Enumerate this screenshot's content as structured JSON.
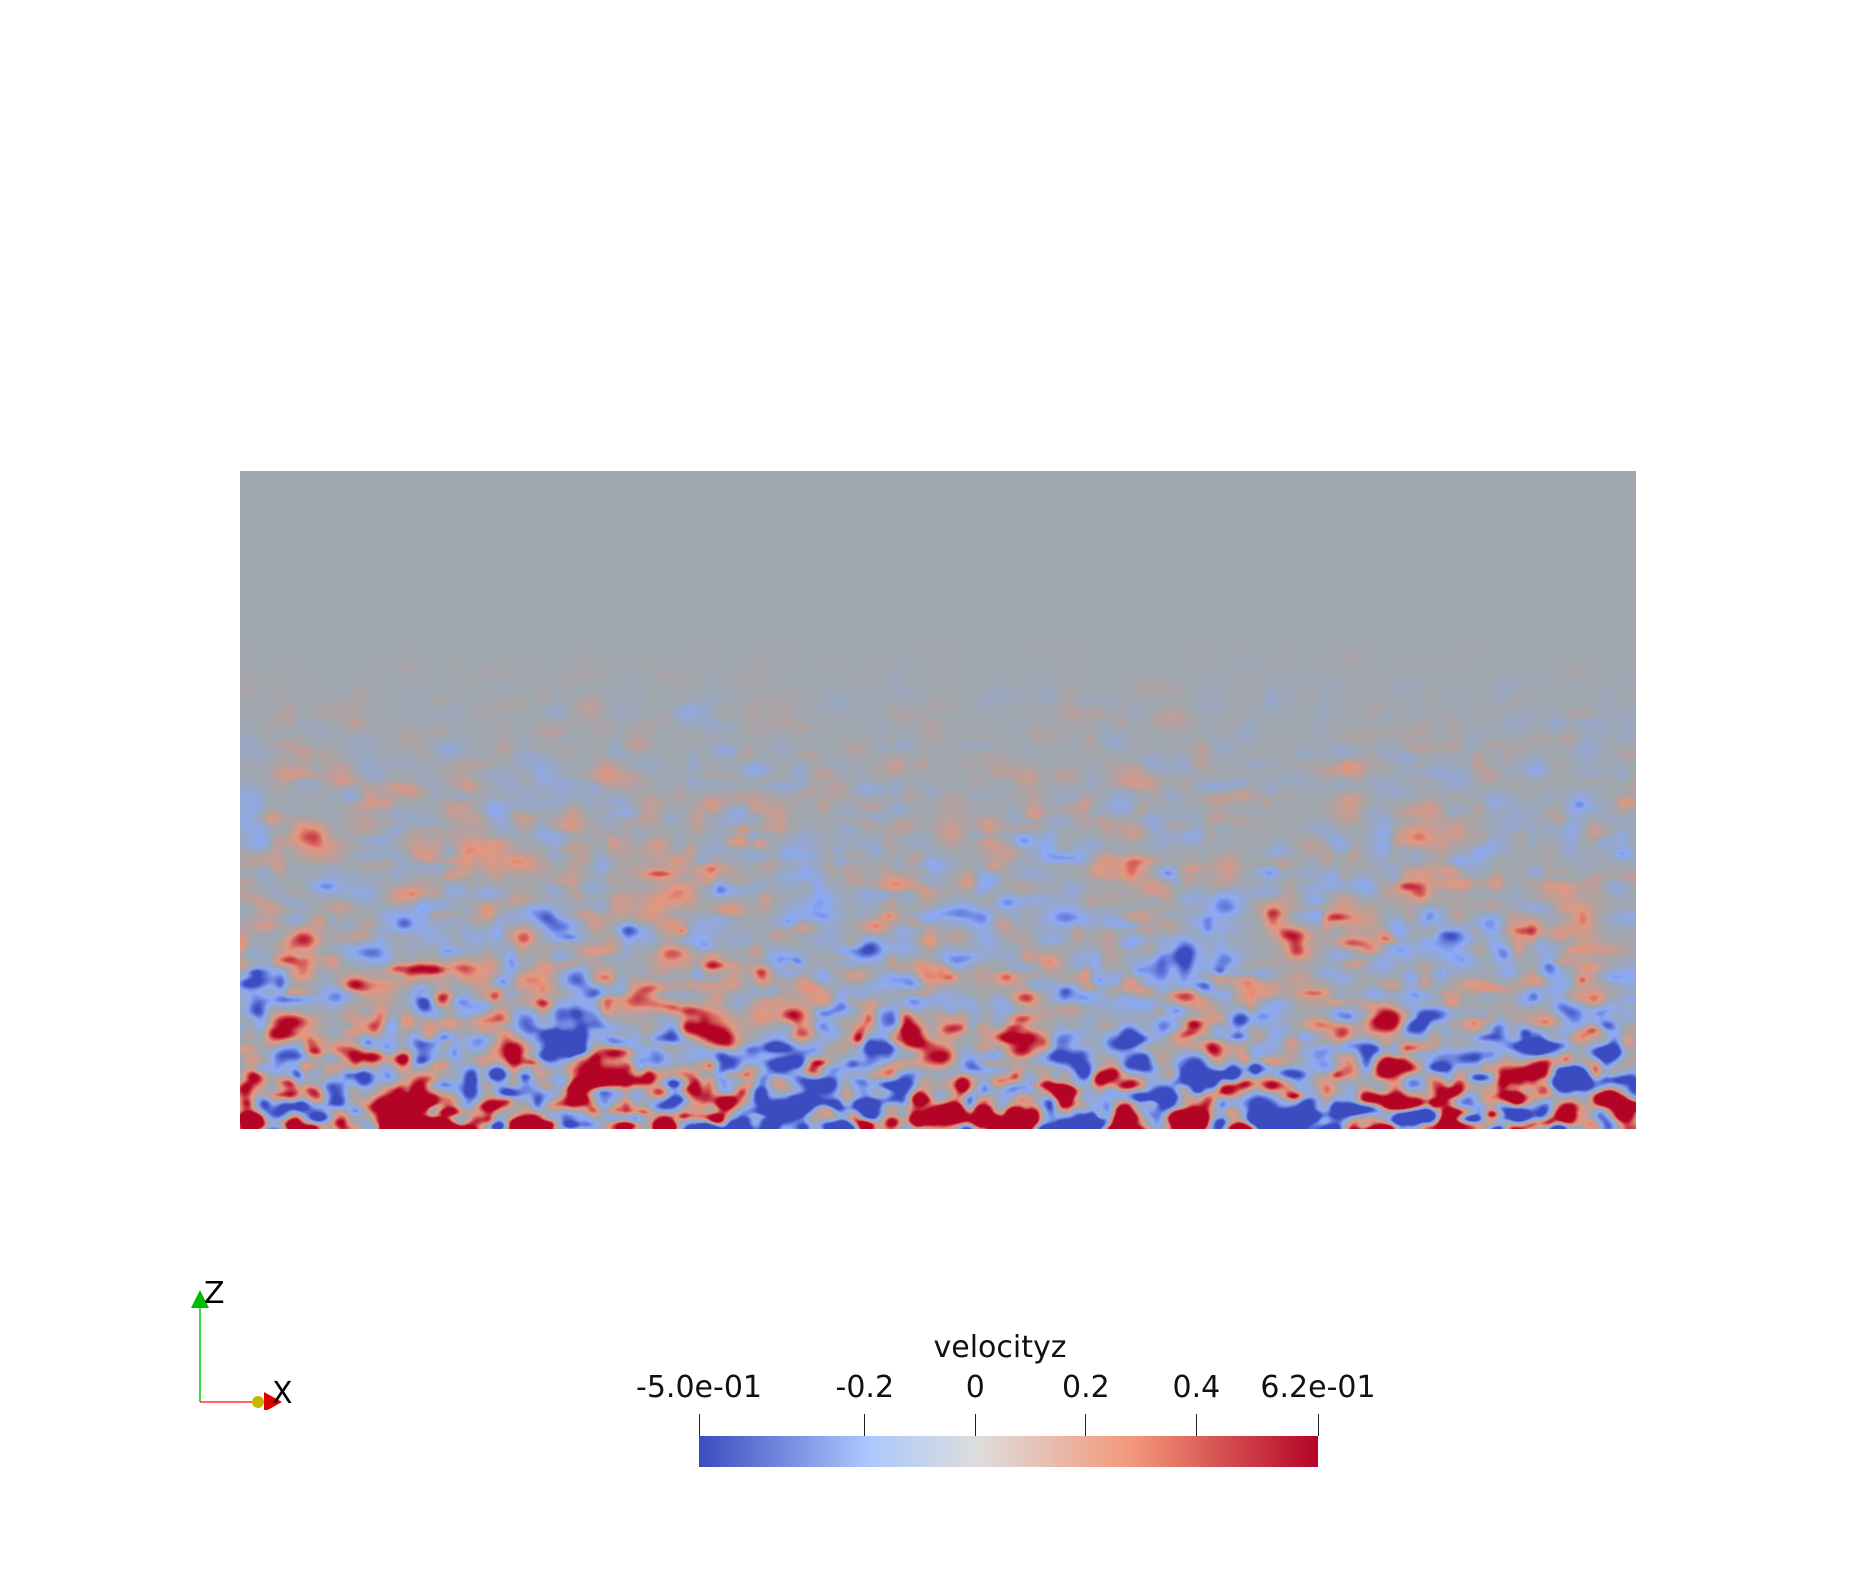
{
  "colorbar": {
    "title": "velocityz",
    "ticks": [
      {
        "label": "-5.0e-01",
        "value": -0.5
      },
      {
        "label": "-0.2",
        "value": -0.2
      },
      {
        "label": "0",
        "value": 0
      },
      {
        "label": "0.2",
        "value": 0.2
      },
      {
        "label": "0.4",
        "value": 0.4
      },
      {
        "label": "6.2e-01",
        "value": 0.62
      }
    ],
    "range": [
      -0.5,
      0.62
    ],
    "colormap": [
      "#3b4cc0",
      "#aac7fd",
      "#dddddd",
      "#f7a889",
      "#b40426"
    ]
  },
  "axes": {
    "z_label": "Z",
    "x_label": "X",
    "z_color": "#00cc00",
    "x_color": "#ff3333",
    "y_color": "#cccc00"
  },
  "field": {
    "background_color": "#a0a6ae"
  }
}
